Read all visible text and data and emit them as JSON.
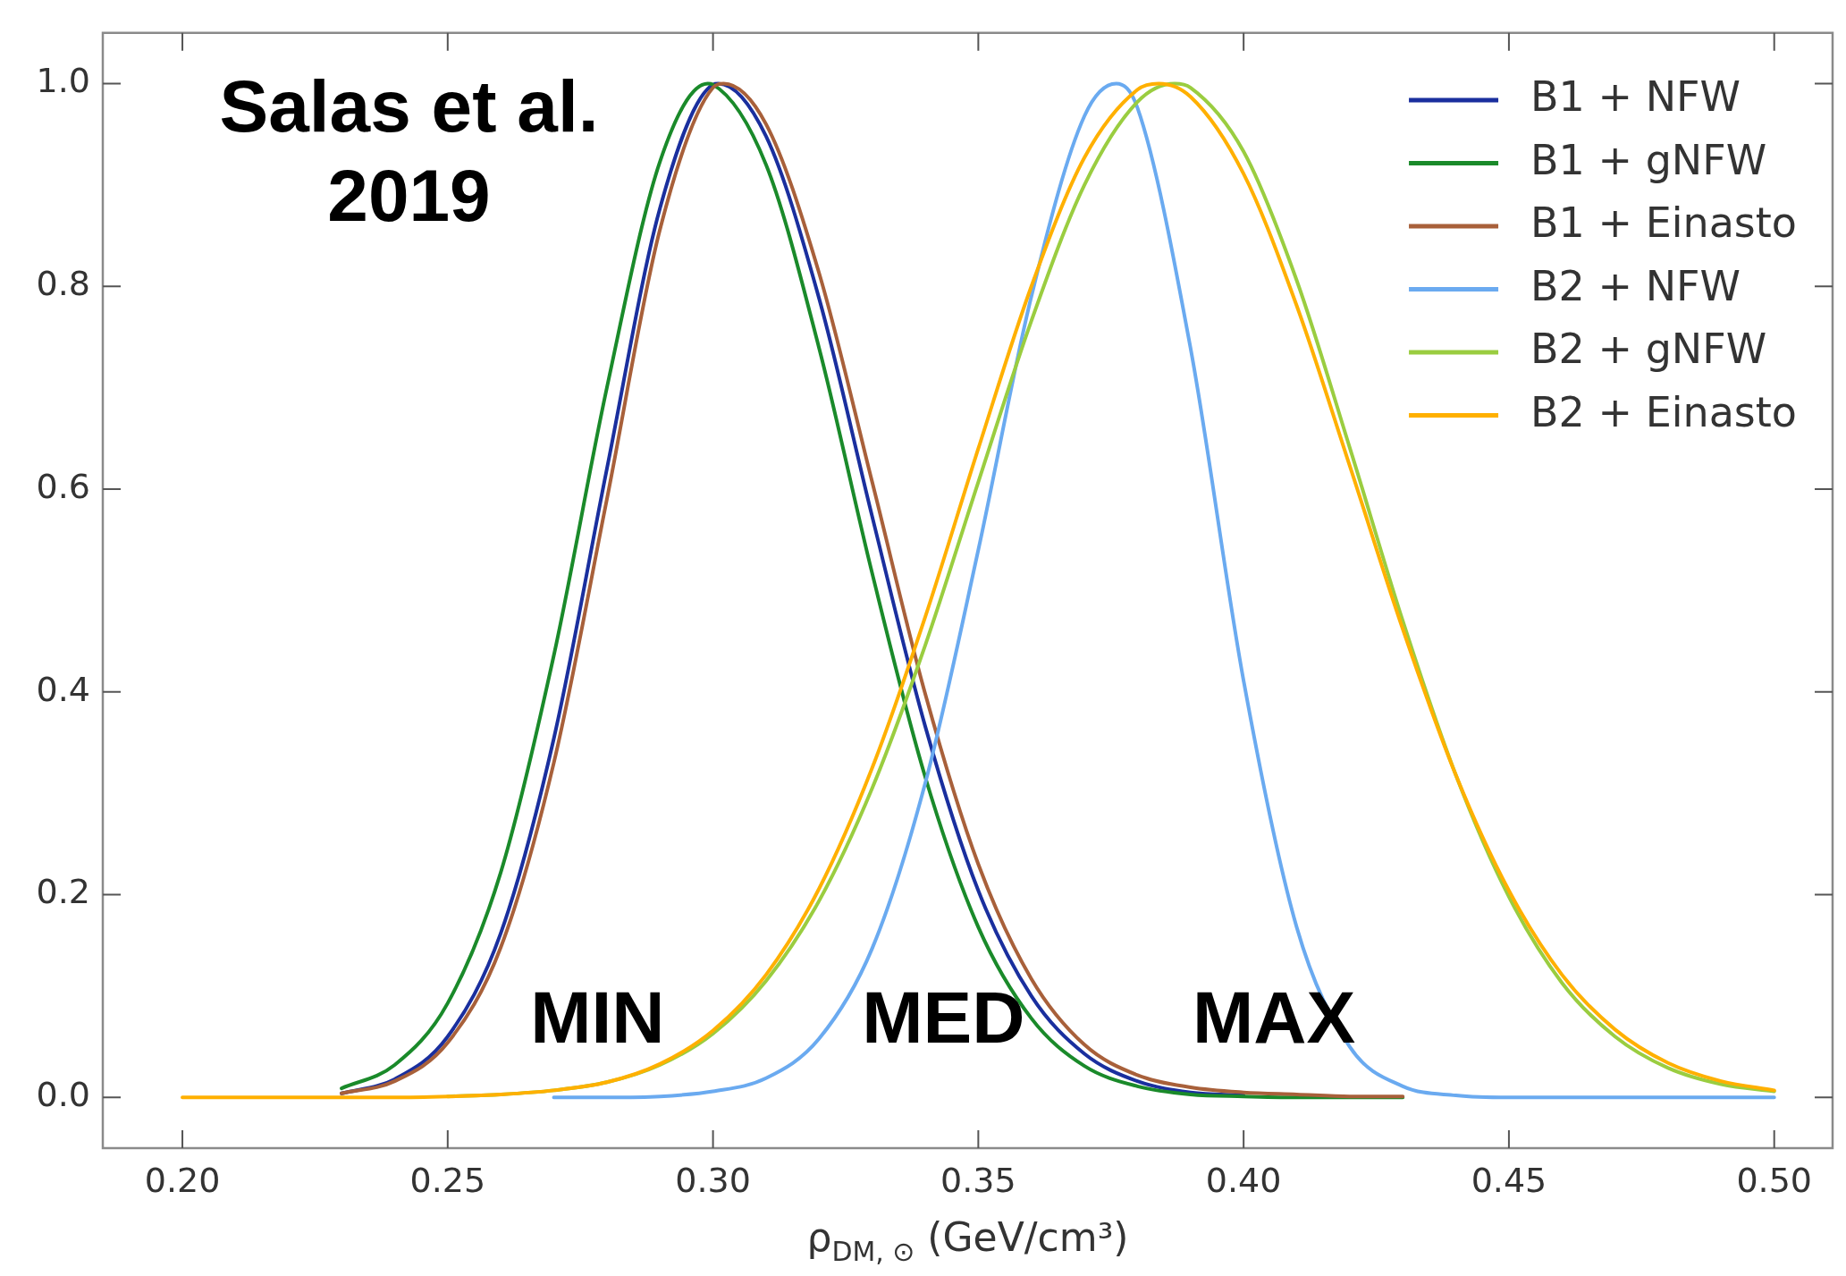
{
  "chart_data": {
    "type": "line",
    "xlabel": "ρ$_{DM, ⊙}$ (GeV/cm³)",
    "annotations": [
      "Salas et al. 2019",
      "MIN",
      "MED",
      "MAX"
    ],
    "xlim": [
      0.185,
      0.511
    ],
    "ylim": [
      -0.05,
      1.05
    ],
    "xticks": [
      {
        "value": 0.2,
        "label": "0.20"
      },
      {
        "value": 0.25,
        "label": "0.25"
      },
      {
        "value": 0.3,
        "label": "0.30"
      },
      {
        "value": 0.35,
        "label": "0.35"
      },
      {
        "value": 0.4,
        "label": "0.40"
      },
      {
        "value": 0.45,
        "label": "0.45"
      },
      {
        "value": 0.5,
        "label": "0.50"
      }
    ],
    "yticks": [
      {
        "value": 0,
        "label": "0.0"
      },
      {
        "value": 0.2,
        "label": "0.2"
      },
      {
        "value": 0.4,
        "label": "0.4"
      },
      {
        "value": 0.6,
        "label": "0.6"
      },
      {
        "value": 0.8,
        "label": "0.8"
      },
      {
        "value": 1,
        "label": "1.0"
      }
    ],
    "legend": "top right",
    "series": [
      {
        "name": "B1 + NFW",
        "color": "#1a2f9e",
        "x": [
          0.23,
          0.24,
          0.25,
          0.26,
          0.27,
          0.28,
          0.29,
          0.3,
          0.301,
          0.31,
          0.32,
          0.33,
          0.34,
          0.35,
          0.36,
          0.37,
          0.38,
          0.39,
          0.4
        ],
        "values": [
          0.004,
          0.018,
          0.06,
          0.162,
          0.354,
          0.62,
          0.877,
          0.999,
          1,
          0.948,
          0.788,
          0.573,
          0.366,
          0.204,
          0.1,
          0.043,
          0.016,
          0.005,
          0.002
        ]
      },
      {
        "name": "B1 + gNFW",
        "color": "#1a8a2a",
        "x": [
          0.23,
          0.24,
          0.25,
          0.26,
          0.27,
          0.28,
          0.29,
          0.299,
          0.3,
          0.31,
          0.32,
          0.33,
          0.34,
          0.35,
          0.36,
          0.37,
          0.38,
          0.39,
          0.4,
          0.41,
          0.42,
          0.43
        ],
        "values": [
          0.009,
          0.032,
          0.093,
          0.222,
          0.436,
          0.7,
          0.923,
          1,
          0.999,
          0.92,
          0.739,
          0.517,
          0.316,
          0.168,
          0.078,
          0.031,
          0.011,
          0.003,
          0.001,
          0,
          0,
          0
        ]
      },
      {
        "name": "B1 + Einasto",
        "color": "#a8603a",
        "x": [
          0.23,
          0.24,
          0.25,
          0.26,
          0.27,
          0.28,
          0.29,
          0.3,
          0.302,
          0.31,
          0.32,
          0.33,
          0.34,
          0.35,
          0.36,
          0.37,
          0.38,
          0.39,
          0.4,
          0.41,
          0.42,
          0.43
        ],
        "values": [
          0.004,
          0.016,
          0.054,
          0.148,
          0.33,
          0.59,
          0.856,
          0.996,
          1,
          0.96,
          0.813,
          0.607,
          0.398,
          0.23,
          0.117,
          0.052,
          0.022,
          0.01,
          0.005,
          0.003,
          0.001,
          0.001
        ]
      },
      {
        "name": "B2 + NFW",
        "color": "#6aaaf0",
        "x": [
          0.27,
          0.28,
          0.29,
          0.3,
          0.31,
          0.32,
          0.33,
          0.34,
          0.35,
          0.36,
          0.37,
          0.376,
          0.38,
          0.39,
          0.4,
          0.41,
          0.42,
          0.43,
          0.44,
          0.45,
          0.46,
          0.47,
          0.48,
          0.49,
          0.5
        ],
        "values": [
          0,
          0,
          0.001,
          0.006,
          0.019,
          0.058,
          0.147,
          0.31,
          0.54,
          0.79,
          0.968,
          1,
          0.976,
          0.739,
          0.411,
          0.168,
          0.05,
          0.011,
          0.002,
          0,
          0,
          0,
          0,
          0,
          0
        ]
      },
      {
        "name": "B2 + gNFW",
        "color": "#9acd40",
        "x": [
          0.25,
          0.26,
          0.27,
          0.28,
          0.29,
          0.3,
          0.31,
          0.32,
          0.33,
          0.34,
          0.35,
          0.36,
          0.37,
          0.38,
          0.387,
          0.39,
          0.4,
          0.41,
          0.42,
          0.43,
          0.44,
          0.45,
          0.46,
          0.47,
          0.48,
          0.49,
          0.5
        ],
        "values": [
          0.001,
          0.003,
          0.007,
          0.015,
          0.032,
          0.063,
          0.115,
          0.194,
          0.305,
          0.446,
          0.607,
          0.766,
          0.9,
          0.982,
          1,
          0.996,
          0.933,
          0.806,
          0.641,
          0.47,
          0.318,
          0.198,
          0.113,
          0.06,
          0.029,
          0.013,
          0.006
        ]
      },
      {
        "name": "B2 + Einasto",
        "color": "#ffb000",
        "x": [
          0.2,
          0.21,
          0.22,
          0.23,
          0.24,
          0.25,
          0.26,
          0.27,
          0.28,
          0.29,
          0.3,
          0.31,
          0.32,
          0.33,
          0.34,
          0.35,
          0.36,
          0.37,
          0.38,
          0.384,
          0.39,
          0.4,
          0.41,
          0.42,
          0.43,
          0.44,
          0.45,
          0.46,
          0.47,
          0.48,
          0.49,
          0.5
        ],
        "values": [
          0,
          0,
          0,
          0,
          0,
          0.001,
          0.003,
          0.007,
          0.015,
          0.033,
          0.066,
          0.121,
          0.206,
          0.325,
          0.474,
          0.64,
          0.8,
          0.927,
          0.994,
          1,
          0.987,
          0.911,
          0.781,
          0.623,
          0.462,
          0.318,
          0.204,
          0.121,
          0.067,
          0.034,
          0.016,
          0.007
        ]
      }
    ]
  }
}
